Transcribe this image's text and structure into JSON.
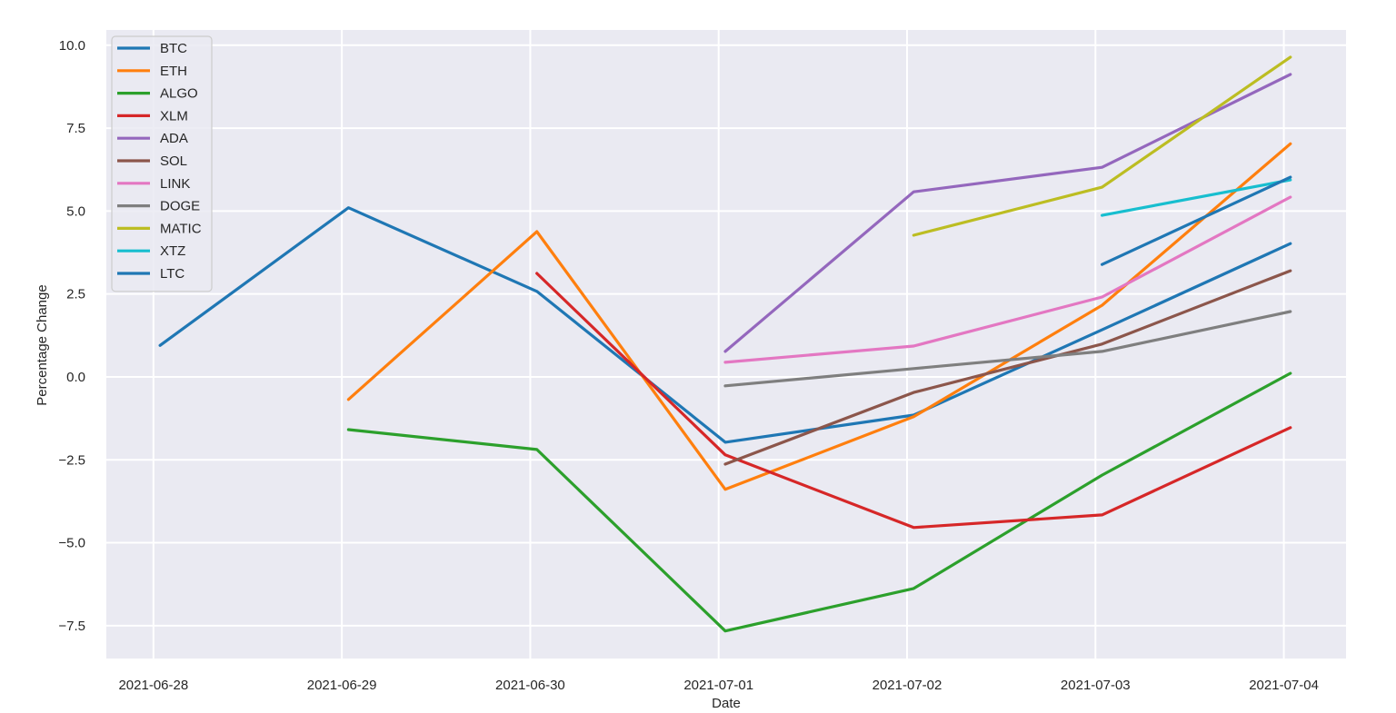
{
  "chart_data": {
    "type": "line",
    "title": "",
    "xlabel": "Date",
    "ylabel": "Percentage Change",
    "x": [
      "2021-06-28",
      "2021-06-29",
      "2021-06-30",
      "2021-07-01",
      "2021-07-02",
      "2021-07-03",
      "2021-07-04"
    ],
    "x_ticks": [
      "2021-06-28",
      "2021-06-29",
      "2021-06-30",
      "2021-07-01",
      "2021-07-02",
      "2021-07-03",
      "2021-07-04"
    ],
    "y_ticks": [
      10.0,
      7.5,
      5.0,
      2.5,
      0.0,
      -2.5,
      -5.0,
      -7.5
    ],
    "y_tick_labels": [
      "10.0",
      "7.5",
      "5.0",
      "2.5",
      "0.0",
      "−2.5",
      "−5.0",
      "−7.5"
    ],
    "ylim": [
      -8.49,
      10.46
    ],
    "xlim_days": [
      -0.25,
      6.33
    ],
    "point_offset_days": 0.035,
    "grid": true,
    "legend_position": "upper left",
    "style": {
      "axes_bg": "#eaeaf2",
      "grid_color": "#ffffff",
      "figure_bg": "#ffffff",
      "legend_bg": "#eaeaf2",
      "legend_border": "#cccccc"
    },
    "series": [
      {
        "name": "BTC",
        "color": "#1f77b4",
        "values": [
          0.95,
          5.1,
          2.58,
          -1.97,
          -1.15,
          1.42,
          4.02
        ]
      },
      {
        "name": "ETH",
        "color": "#ff7f0e",
        "values": [
          null,
          -0.68,
          4.38,
          -3.39,
          -1.2,
          2.16,
          7.03
        ]
      },
      {
        "name": "ALGO",
        "color": "#2ca02c",
        "values": [
          null,
          -1.59,
          -2.19,
          -7.66,
          -6.38,
          -2.96,
          0.11
        ]
      },
      {
        "name": "XLM",
        "color": "#d62728",
        "values": [
          null,
          null,
          3.12,
          -2.35,
          -4.54,
          -4.16,
          -1.53
        ]
      },
      {
        "name": "ADA",
        "color": "#9467bd",
        "values": [
          null,
          null,
          null,
          0.77,
          5.58,
          6.32,
          9.12
        ]
      },
      {
        "name": "SOL",
        "color": "#8c564b",
        "values": [
          null,
          null,
          null,
          -2.63,
          -0.47,
          0.99,
          3.2
        ]
      },
      {
        "name": "LINK",
        "color": "#e377c2",
        "values": [
          null,
          null,
          null,
          0.44,
          0.93,
          2.41,
          5.42
        ]
      },
      {
        "name": "DOGE",
        "color": "#7f7f7f",
        "values": [
          null,
          null,
          null,
          -0.27,
          0.25,
          0.77,
          1.97
        ]
      },
      {
        "name": "MATIC",
        "color": "#bcbd22",
        "values": [
          null,
          null,
          null,
          null,
          4.27,
          5.72,
          9.64
        ]
      },
      {
        "name": "XTZ",
        "color": "#17becf",
        "values": [
          null,
          null,
          null,
          null,
          null,
          4.87,
          5.94
        ]
      },
      {
        "name": "LTC",
        "color": "#1f77b4",
        "values": [
          null,
          null,
          null,
          null,
          null,
          3.39,
          6.02
        ]
      }
    ]
  }
}
